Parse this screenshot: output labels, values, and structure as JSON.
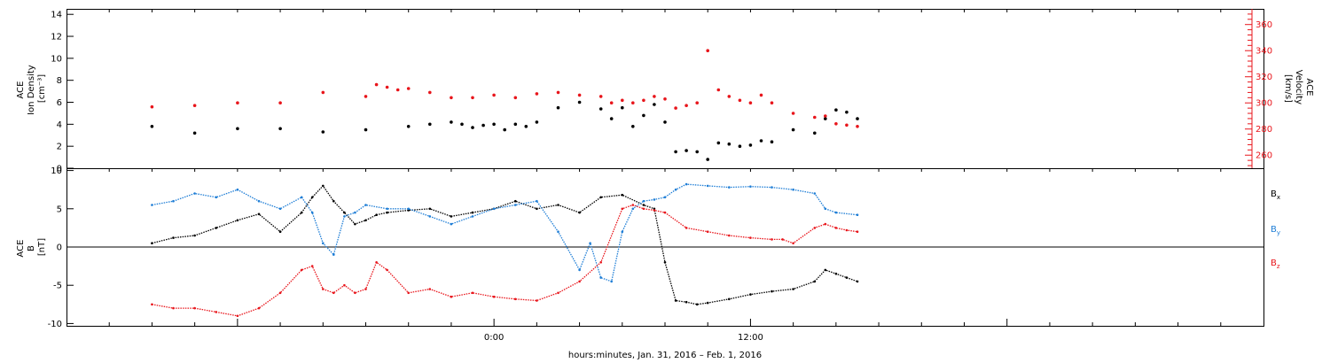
{
  "chart_data": [
    {
      "type": "scatter",
      "panel": "density-velocity",
      "ylabel_left": [
        "ACE",
        "Ion Density",
        "[cm⁻³]"
      ],
      "ylabel_right": [
        "ACE",
        "Velocity",
        "[km/s]"
      ],
      "left_axis": {
        "min": 0,
        "max": 14.5,
        "ticks": [
          0,
          2,
          4,
          6,
          8,
          10,
          12,
          14
        ]
      },
      "right_axis": {
        "min": 250,
        "max": 372,
        "ticks": [
          260,
          280,
          300,
          320,
          340,
          360
        ],
        "color": "#e8151b"
      },
      "series": [
        {
          "color": "#000000",
          "axis": "left",
          "x": [
            -16,
            -14,
            -12,
            -10,
            -8,
            -6,
            -4,
            -3,
            -2,
            -1.5,
            -1,
            -0.5,
            0,
            0.5,
            1,
            1.5,
            2,
            3,
            4,
            5,
            5.5,
            6,
            6.5,
            7,
            7.5,
            8,
            8.5,
            9,
            9.5,
            10,
            10.5,
            11,
            11.5,
            12,
            12.5,
            13,
            14,
            15,
            15.5,
            16,
            16.5,
            17
          ],
          "y": [
            3.8,
            3.2,
            3.6,
            3.6,
            3.3,
            3.5,
            3.8,
            4.0,
            4.2,
            4.0,
            3.7,
            3.9,
            4.0,
            3.5,
            4.0,
            3.8,
            4.2,
            5.5,
            6.0,
            5.4,
            4.5,
            5.5,
            3.8,
            4.8,
            5.8,
            4.2,
            1.5,
            1.6,
            1.5,
            0.8,
            2.3,
            2.2,
            2.0,
            2.1,
            2.5,
            2.4,
            3.5,
            3.2,
            4.5,
            5.3,
            5.1,
            4.5
          ]
        },
        {
          "color": "#e8151b",
          "axis": "right",
          "x": [
            -16,
            -14,
            -12,
            -10,
            -8,
            -6,
            -5.5,
            -5,
            -4.5,
            -4,
            -3,
            -2,
            -1,
            0,
            1,
            2,
            3,
            4,
            5,
            5.5,
            6,
            6.5,
            7,
            7.5,
            8,
            8.5,
            9,
            9.5,
            10,
            10.5,
            11,
            11.5,
            12,
            12.5,
            13,
            14,
            15,
            15.5,
            16,
            16.5,
            17
          ],
          "y": [
            297,
            298,
            300,
            300,
            308,
            305,
            314,
            312,
            310,
            311,
            308,
            304,
            304,
            306,
            304,
            307,
            308,
            306,
            305,
            300,
            302,
            300,
            302,
            305,
            303,
            296,
            298,
            300,
            340,
            310,
            305,
            302,
            300,
            306,
            300,
            292,
            289,
            290,
            284,
            283,
            282
          ]
        }
      ]
    },
    {
      "type": "line",
      "panel": "magnetic-field",
      "ylabel": [
        "ACE",
        "B",
        "[nT]"
      ],
      "ylim": [
        -10.3,
        10.3
      ],
      "yticks": [
        -10,
        -5,
        0,
        5,
        10
      ],
      "legend": [
        "Bx",
        "By",
        "Bz"
      ],
      "legend_placement": "right",
      "series": [
        {
          "name": "Bx",
          "color": "#000000",
          "x": [
            -16,
            -15,
            -14,
            -13,
            -12,
            -11,
            -10,
            -9,
            -8.5,
            -8,
            -7.5,
            -7,
            -6.5,
            -6,
            -5.5,
            -5,
            -4,
            -3,
            -2,
            -1,
            0,
            1,
            2,
            3,
            4,
            5,
            6,
            7,
            7.5,
            8,
            8.5,
            9,
            9.5,
            10,
            11,
            12,
            13,
            14,
            15,
            15.5,
            16,
            16.5,
            17
          ],
          "y": [
            0.5,
            1.2,
            1.5,
            2.5,
            3.5,
            4.3,
            2.0,
            4.5,
            6.5,
            8.0,
            6.0,
            4.5,
            3.0,
            3.5,
            4.2,
            4.5,
            4.8,
            5.0,
            4.0,
            4.5,
            5.0,
            6.0,
            5.0,
            5.5,
            4.5,
            6.5,
            6.8,
            5.5,
            5.0,
            -2.0,
            -7.0,
            -7.2,
            -7.5,
            -7.3,
            -6.8,
            -6.2,
            -5.8,
            -5.5,
            -4.5,
            -3.0,
            -3.5,
            -4.0,
            -4.5
          ]
        },
        {
          "name": "By",
          "color": "#1f7ed6",
          "x": [
            -16,
            -15,
            -14,
            -13,
            -12,
            -11,
            -10,
            -9,
            -8.5,
            -8,
            -7.5,
            -7,
            -6.5,
            -6,
            -5,
            -4,
            -3,
            -2,
            -1,
            0,
            1,
            2,
            3,
            4,
            4.5,
            5,
            5.5,
            6,
            6.5,
            7,
            7.5,
            8,
            8.5,
            9,
            10,
            11,
            12,
            13,
            14,
            15,
            15.5,
            16,
            17
          ],
          "y": [
            5.5,
            6.0,
            7.0,
            6.5,
            7.5,
            6.0,
            5.0,
            6.5,
            4.5,
            0.5,
            -1.0,
            4.0,
            4.5,
            5.5,
            5.0,
            5.0,
            4.0,
            3.0,
            4.0,
            5.0,
            5.5,
            6.0,
            2.0,
            -3.0,
            0.5,
            -4.0,
            -4.5,
            2.0,
            5.0,
            6.0,
            6.2,
            6.5,
            7.5,
            8.2,
            8.0,
            7.8,
            7.9,
            7.8,
            7.5,
            7.0,
            5.0,
            4.5,
            4.2
          ]
        },
        {
          "name": "Bz",
          "color": "#e8151b",
          "x": [
            -16,
            -15,
            -14,
            -13,
            -12,
            -11,
            -10,
            -9,
            -8.5,
            -8,
            -7.5,
            -7,
            -6.5,
            -6,
            -5.5,
            -5,
            -4,
            -3,
            -2,
            -1,
            0,
            1,
            2,
            3,
            4,
            5,
            6,
            6.5,
            7,
            7.5,
            8,
            9,
            10,
            11,
            12,
            13,
            13.5,
            14,
            15,
            15.5,
            16,
            16.5,
            17
          ],
          "y": [
            -7.5,
            -8.0,
            -8.0,
            -8.5,
            -9.0,
            -8.0,
            -6.0,
            -3.0,
            -2.5,
            -5.5,
            -6.0,
            -5.0,
            -6.0,
            -5.5,
            -2.0,
            -3.0,
            -6.0,
            -5.5,
            -6.5,
            -6.0,
            -6.5,
            -6.8,
            -7.0,
            -6.0,
            -4.5,
            -2.0,
            5.0,
            5.5,
            5.0,
            4.8,
            4.5,
            2.5,
            2.0,
            1.5,
            1.2,
            1.0,
            1.0,
            0.5,
            2.5,
            3.0,
            2.5,
            2.2,
            2.0
          ]
        }
      ]
    }
  ],
  "legend_labels": {
    "bx": "B",
    "bx_sub": "x",
    "by": "B",
    "by_sub": "y",
    "bz": "B",
    "bz_sub": "z"
  },
  "x_axis": {
    "min": -20,
    "max": 36,
    "tick_labels": [
      {
        "value": 0,
        "text": "0:00"
      },
      {
        "value": 12,
        "text": "12:00"
      }
    ],
    "title": "hours:minutes, Jan. 31, 2016 – Feb.  1, 2016"
  },
  "colors": {
    "black": "#000000",
    "red": "#e8151b",
    "blue": "#1f7ed6"
  }
}
